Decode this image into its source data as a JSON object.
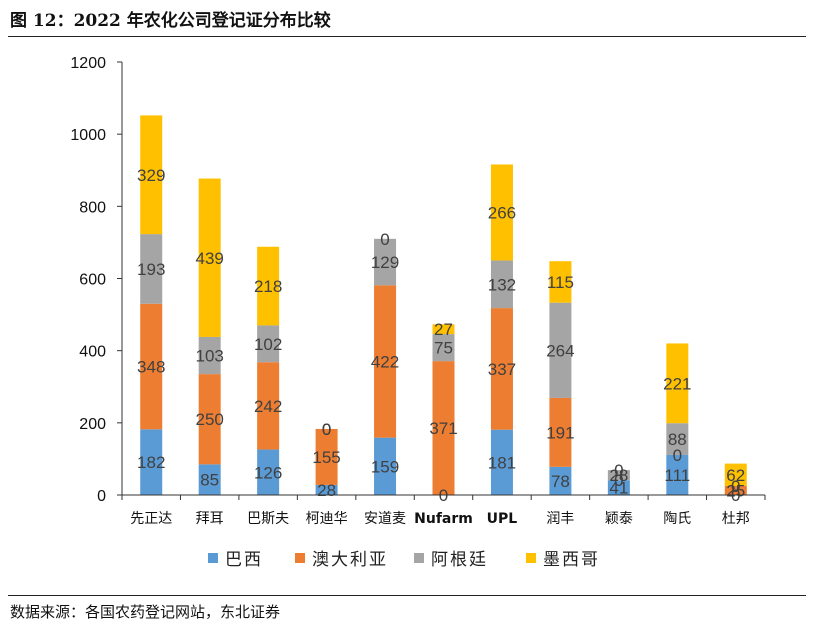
{
  "header": {
    "title": "图 12：2022 年农化公司登记证分布比较"
  },
  "footer": {
    "source": "数据来源：各国农药登记网站，东北证券"
  },
  "chart_data": {
    "type": "bar",
    "stacked": true,
    "categories": [
      "先正达",
      "拜耳",
      "巴斯夫",
      "柯迪华",
      "安道麦",
      "Nufarm",
      "UPL",
      "润丰",
      "颖泰",
      "陶氏",
      "杜邦"
    ],
    "series": [
      {
        "name": "巴西",
        "color": "#5B9BD5",
        "values": [
          182,
          85,
          126,
          28,
          159,
          0,
          181,
          78,
          41,
          111,
          0
        ]
      },
      {
        "name": "澳大利亚",
        "color": "#ED7D31",
        "values": [
          348,
          250,
          242,
          155,
          422,
          371,
          337,
          191,
          0,
          0,
          25
        ]
      },
      {
        "name": "阿根廷",
        "color": "#A5A5A5",
        "values": [
          193,
          103,
          102,
          0,
          129,
          75,
          132,
          264,
          28,
          88,
          0
        ]
      },
      {
        "name": "墨西哥",
        "color": "#FFC000",
        "values": [
          329,
          439,
          218,
          0,
          0,
          27,
          266,
          115,
          0,
          221,
          62
        ]
      }
    ],
    "yticks": [
      0,
      200,
      400,
      600,
      800,
      1000,
      1200
    ],
    "ylim": [
      0,
      1200
    ],
    "legend_position": "bottom"
  }
}
